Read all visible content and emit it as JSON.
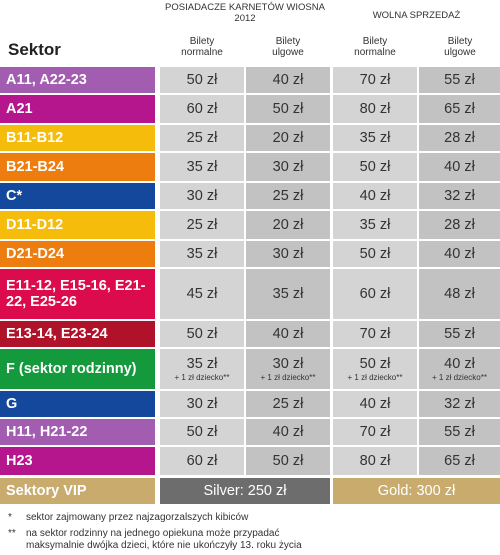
{
  "header": {
    "group1": "POSIADACZE KARNETÓW WIOSNA 2012",
    "group2": "WOLNA SPRZEDAŻ",
    "sektor": "Sektor",
    "col_normal": "Bilety normalne",
    "col_reduced": "Bilety ulgowe"
  },
  "colors": {
    "purple_light": "#a25cb0",
    "magenta": "#b5168e",
    "yellow": "#f6bc0c",
    "orange": "#ee7d10",
    "blue": "#14489c",
    "red": "#dc0b4d",
    "darkred": "#b01229",
    "green": "#149a3c",
    "gold": "#c9ab6e",
    "silver": "#6d6d6d"
  },
  "rows": [
    {
      "sector": "A11, A22-23",
      "color": "purple_light",
      "p1": "50 zł",
      "p2": "40 zł",
      "p3": "70 zł",
      "p4": "55 zł"
    },
    {
      "sector": "A21",
      "color": "magenta",
      "p1": "60 zł",
      "p2": "50 zł",
      "p3": "80 zł",
      "p4": "65 zł"
    },
    {
      "sector": "B11-B12",
      "color": "yellow",
      "p1": "25 zł",
      "p2": "20 zł",
      "p3": "35 zł",
      "p4": "28 zł"
    },
    {
      "sector": "B21-B24",
      "color": "orange",
      "p1": "35 zł",
      "p2": "30 zł",
      "p3": "50 zł",
      "p4": "40 zł"
    },
    {
      "sector": "C*",
      "color": "blue",
      "p1": "30 zł",
      "p2": "25 zł",
      "p3": "40 zł",
      "p4": "32 zł"
    },
    {
      "sector": "D11-D12",
      "color": "yellow",
      "p1": "25 zł",
      "p2": "20 zł",
      "p3": "35 zł",
      "p4": "28 zł"
    },
    {
      "sector": "D21-D24",
      "color": "orange",
      "p1": "35 zł",
      "p2": "30 zł",
      "p3": "50 zł",
      "p4": "40 zł"
    },
    {
      "sector": "E11-12, E15-16, E21-22, E25-26",
      "color": "red",
      "p1": "45 zł",
      "p2": "35 zł",
      "p3": "60 zł",
      "p4": "48 zł"
    },
    {
      "sector": "E13-14, E23-24",
      "color": "darkred",
      "p1": "50 zł",
      "p2": "40 zł",
      "p3": "70 zł",
      "p4": "55 zł"
    },
    {
      "sector": "F (sektor rodzinny)",
      "color": "green",
      "p1": "35 zł",
      "p2": "30 zł",
      "p3": "50 zł",
      "p4": "40 zł",
      "note": "+ 1 zł dziecko**"
    },
    {
      "sector": "G",
      "color": "blue",
      "p1": "30 zł",
      "p2": "25 zł",
      "p3": "40 zł",
      "p4": "32 zł"
    },
    {
      "sector": "H11, H21-22",
      "color": "purple_light",
      "p1": "50 zł",
      "p2": "40 zł",
      "p3": "70 zł",
      "p4": "55 zł"
    },
    {
      "sector": "H23",
      "color": "magenta",
      "p1": "60 zł",
      "p2": "50 zł",
      "p3": "80 zł",
      "p4": "65 zł"
    }
  ],
  "vip": {
    "label": "Sektory VIP",
    "silver": "Silver: 250 zł",
    "gold": "Gold: 300 zł"
  },
  "footnotes": [
    {
      "mark": "*",
      "text": "sektor zajmowany przez najzagorzalszych kibiców"
    },
    {
      "mark": "**",
      "text": "na sektor rodzinny na jednego opiekuna może przypadać maksymalnie dwójka dzieci, które nie ukończyły 13. roku życia"
    }
  ]
}
